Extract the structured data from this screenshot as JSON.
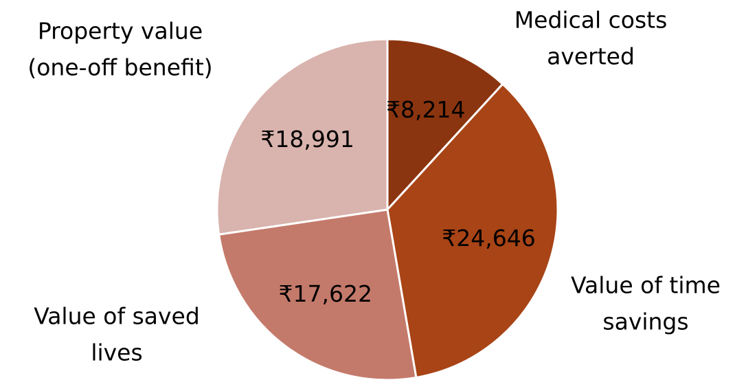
{
  "chart_data": {
    "type": "pie",
    "categories": [
      "Medical costs\naverted",
      "Value of time\nsavings",
      "Value of saved\nlives",
      "Property value\n(one-off benefit)"
    ],
    "values": [
      8214,
      24646,
      17622,
      18991
    ],
    "value_labels": [
      "₹8,214",
      "₹24,646",
      "₹17,622",
      "₹18,991"
    ],
    "colors": [
      "#8b3510",
      "#a84416",
      "#c47a6b",
      "#d9b3ad"
    ]
  }
}
